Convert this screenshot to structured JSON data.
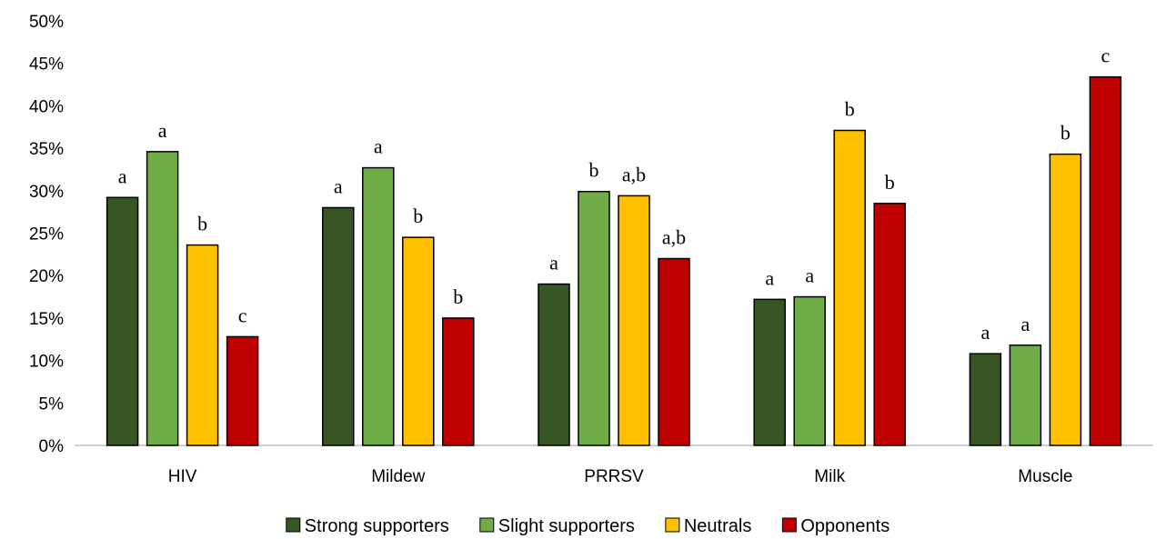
{
  "chart_data": {
    "type": "bar",
    "title": "",
    "xlabel": "",
    "ylabel": "",
    "ylim": [
      0,
      50
    ],
    "y_tick_step": 5,
    "y_tick_suffix": "%",
    "grid": false,
    "legend_position": "bottom",
    "categories": [
      "HIV",
      "Mildew",
      "PRRSV",
      "Milk",
      "Muscle"
    ],
    "series": [
      {
        "name": "Strong supporters",
        "color": "#375623",
        "values": [
          29.2,
          28.0,
          19.0,
          17.2,
          10.8
        ],
        "labels": [
          "a",
          "a",
          "a",
          "a",
          "a"
        ]
      },
      {
        "name": "Slight supporters",
        "color": "#70AD47",
        "values": [
          34.6,
          32.7,
          29.9,
          17.5,
          11.8
        ],
        "labels": [
          "a",
          "a",
          "b",
          "a",
          "a"
        ]
      },
      {
        "name": "Neutrals",
        "color": "#FFC000",
        "values": [
          23.6,
          24.5,
          29.4,
          37.1,
          34.3
        ],
        "labels": [
          "b",
          "b",
          "a,b",
          "b",
          "b"
        ]
      },
      {
        "name": "Opponents",
        "color": "#C00000",
        "values": [
          12.8,
          15.0,
          22.0,
          28.5,
          43.4
        ],
        "labels": [
          "c",
          "b",
          "a,b",
          "b",
          "c"
        ]
      }
    ]
  }
}
